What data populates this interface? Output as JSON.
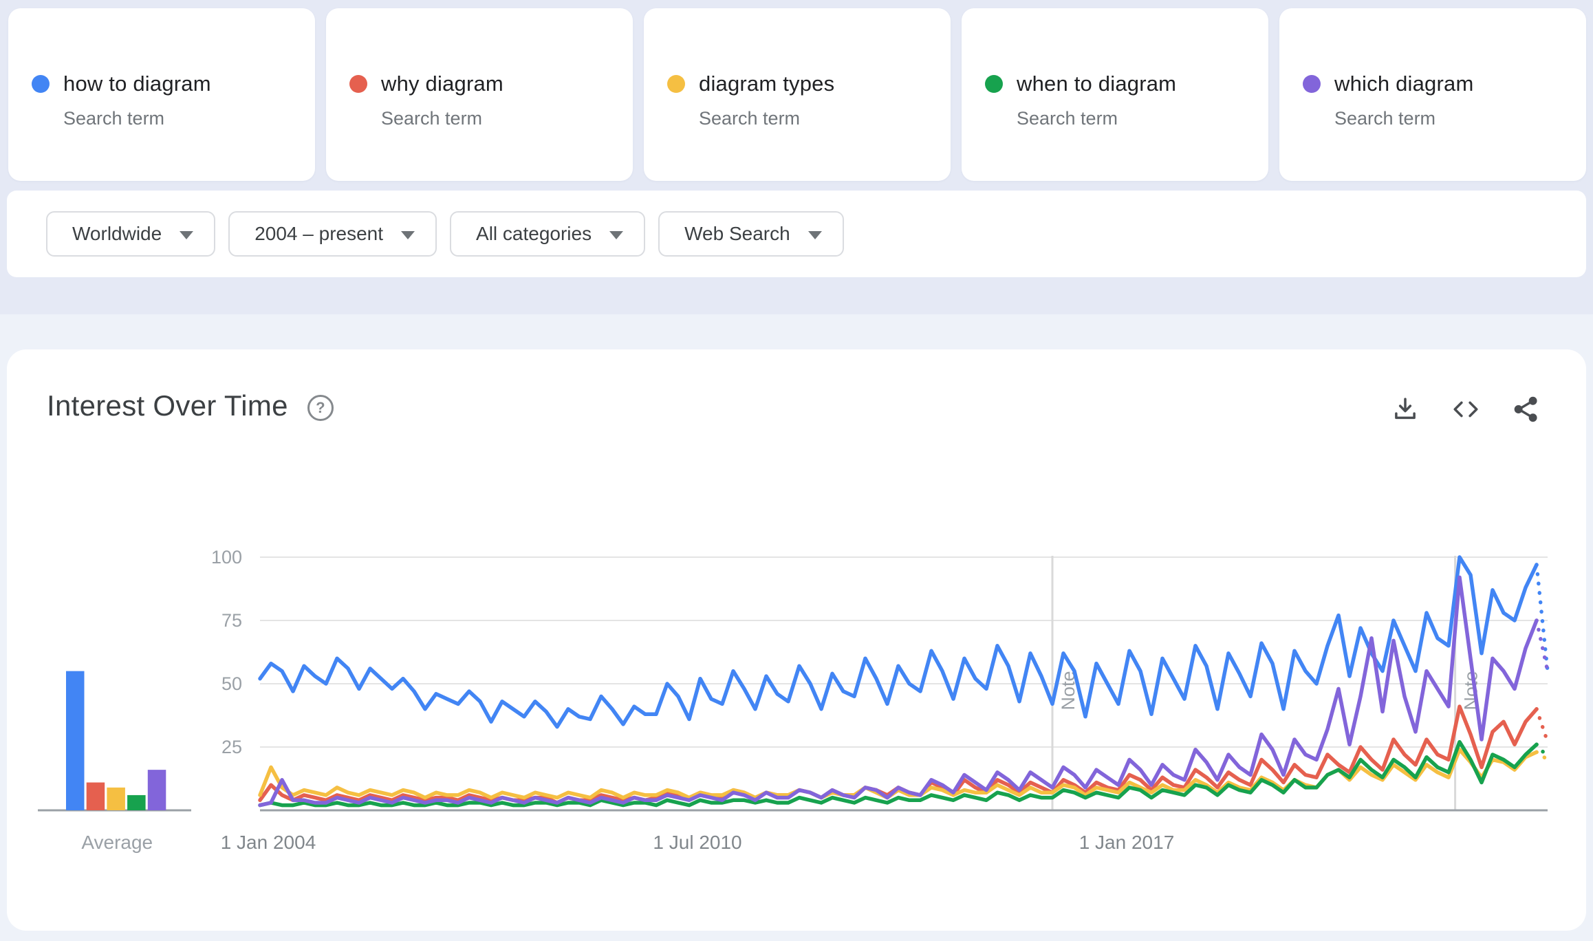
{
  "terms": [
    {
      "label": "how to diagram",
      "type_label": "Search term",
      "color": "#4285f4"
    },
    {
      "label": "why diagram",
      "type_label": "Search term",
      "color": "#e5604f"
    },
    {
      "label": "diagram types",
      "type_label": "Search term",
      "color": "#f5bf42"
    },
    {
      "label": "when to diagram",
      "type_label": "Search term",
      "color": "#17a24e"
    },
    {
      "label": "which diagram",
      "type_label": "Search term",
      "color": "#8265da"
    }
  ],
  "filters": [
    {
      "label": "Worldwide"
    },
    {
      "label": "2004 – present"
    },
    {
      "label": "All categories"
    },
    {
      "label": "Web Search"
    }
  ],
  "panel": {
    "title": "Interest Over Time",
    "help_glyph": "?"
  },
  "chart_data": {
    "type": "line",
    "title": "Interest Over Time",
    "x_domain": [
      2004,
      2023.5
    ],
    "points_per_year": 6,
    "ylim": [
      0,
      100
    ],
    "y_ticks": [
      25,
      50,
      75,
      100
    ],
    "x_ticks": [
      {
        "year": 2004.0,
        "label": "1 Jan 2004"
      },
      {
        "year": 2010.5,
        "label": "1 Jul 2010"
      },
      {
        "year": 2017.0,
        "label": "1 Jan 2017"
      }
    ],
    "notes": [
      {
        "year": 2016.0,
        "label": "Note"
      },
      {
        "year": 2022.1,
        "label": "Note"
      }
    ],
    "partial_last_segment": true,
    "grid": true,
    "average": {
      "label": "Average",
      "values": [
        55,
        11,
        9,
        6,
        16
      ]
    },
    "series": [
      {
        "name": "how to diagram",
        "color": "#4285f4",
        "values": [
          52,
          58,
          55,
          47,
          57,
          53,
          50,
          60,
          56,
          48,
          56,
          52,
          48,
          52,
          47,
          40,
          46,
          44,
          42,
          47,
          43,
          35,
          43,
          40,
          37,
          43,
          39,
          33,
          40,
          37,
          36,
          45,
          40,
          34,
          41,
          38,
          38,
          50,
          45,
          36,
          52,
          44,
          42,
          55,
          48,
          40,
          53,
          46,
          43,
          57,
          50,
          40,
          54,
          47,
          45,
          60,
          52,
          42,
          57,
          50,
          47,
          63,
          55,
          44,
          60,
          52,
          48,
          65,
          57,
          43,
          62,
          53,
          42,
          62,
          55,
          37,
          58,
          50,
          42,
          63,
          55,
          38,
          60,
          52,
          44,
          65,
          57,
          40,
          62,
          54,
          45,
          66,
          58,
          40,
          63,
          55,
          50,
          65,
          77,
          53,
          72,
          62,
          55,
          75,
          65,
          55,
          78,
          68,
          65,
          100,
          93,
          62,
          87,
          78,
          75,
          88,
          97,
          55
        ]
      },
      {
        "name": "why diagram",
        "color": "#e5604f",
        "values": [
          4,
          10,
          6,
          4,
          6,
          5,
          4,
          6,
          5,
          4,
          6,
          5,
          4,
          6,
          5,
          4,
          5,
          5,
          4,
          6,
          5,
          4,
          5,
          4,
          4,
          5,
          5,
          3,
          5,
          4,
          4,
          6,
          5,
          4,
          5,
          4,
          5,
          7,
          6,
          5,
          7,
          6,
          5,
          8,
          7,
          5,
          7,
          6,
          6,
          8,
          7,
          5,
          8,
          6,
          6,
          9,
          8,
          6,
          9,
          7,
          6,
          11,
          9,
          6,
          12,
          9,
          7,
          12,
          10,
          7,
          11,
          9,
          7,
          12,
          10,
          7,
          11,
          9,
          8,
          14,
          12,
          8,
          13,
          10,
          9,
          16,
          13,
          9,
          15,
          12,
          10,
          20,
          16,
          11,
          18,
          14,
          13,
          22,
          18,
          15,
          25,
          20,
          16,
          28,
          22,
          18,
          28,
          22,
          20,
          41,
          30,
          17,
          31,
          35,
          26,
          35,
          40,
          27
        ]
      },
      {
        "name": "diagram types",
        "color": "#f5bf42",
        "values": [
          6,
          17,
          9,
          6,
          8,
          7,
          6,
          9,
          7,
          6,
          8,
          7,
          6,
          8,
          7,
          5,
          7,
          6,
          6,
          8,
          7,
          5,
          7,
          6,
          5,
          7,
          6,
          5,
          7,
          6,
          5,
          8,
          7,
          5,
          7,
          6,
          6,
          8,
          7,
          5,
          7,
          6,
          6,
          8,
          7,
          5,
          7,
          6,
          6,
          8,
          7,
          5,
          7,
          6,
          6,
          9,
          7,
          5,
          8,
          6,
          6,
          9,
          8,
          6,
          8,
          7,
          7,
          10,
          8,
          6,
          9,
          7,
          7,
          10,
          9,
          6,
          9,
          8,
          7,
          11,
          9,
          7,
          10,
          8,
          8,
          12,
          10,
          7,
          11,
          9,
          8,
          13,
          11,
          8,
          12,
          10,
          9,
          14,
          16,
          12,
          17,
          14,
          12,
          18,
          15,
          12,
          18,
          15,
          13,
          24,
          19,
          13,
          20,
          19,
          16,
          21,
          23,
          20
        ]
      },
      {
        "name": "when to diagram",
        "color": "#17a24e",
        "values": [
          2,
          3,
          2,
          2,
          3,
          2,
          2,
          3,
          2,
          2,
          3,
          2,
          2,
          3,
          2,
          2,
          3,
          2,
          2,
          3,
          3,
          2,
          3,
          2,
          2,
          3,
          3,
          2,
          3,
          3,
          2,
          4,
          3,
          2,
          3,
          3,
          2,
          4,
          3,
          2,
          4,
          3,
          3,
          4,
          4,
          3,
          4,
          3,
          3,
          5,
          4,
          3,
          5,
          4,
          3,
          5,
          4,
          3,
          5,
          4,
          4,
          6,
          5,
          4,
          6,
          5,
          4,
          7,
          6,
          4,
          6,
          5,
          5,
          8,
          7,
          5,
          7,
          6,
          5,
          9,
          8,
          5,
          8,
          7,
          6,
          10,
          9,
          6,
          10,
          8,
          7,
          12,
          10,
          7,
          12,
          9,
          9,
          14,
          16,
          13,
          20,
          16,
          13,
          20,
          17,
          13,
          21,
          17,
          15,
          27,
          20,
          11,
          22,
          20,
          17,
          22,
          26,
          21
        ]
      },
      {
        "name": "which diagram",
        "color": "#8265da",
        "values": [
          2,
          3,
          12,
          4,
          4,
          3,
          3,
          5,
          4,
          3,
          5,
          4,
          3,
          5,
          4,
          3,
          4,
          4,
          3,
          5,
          4,
          3,
          5,
          4,
          3,
          5,
          4,
          3,
          5,
          4,
          3,
          5,
          4,
          3,
          5,
          4,
          4,
          6,
          5,
          4,
          6,
          5,
          4,
          7,
          6,
          4,
          7,
          5,
          5,
          8,
          7,
          5,
          8,
          6,
          5,
          9,
          8,
          5,
          9,
          7,
          6,
          12,
          10,
          7,
          14,
          11,
          8,
          15,
          12,
          8,
          15,
          12,
          9,
          17,
          14,
          9,
          16,
          13,
          10,
          20,
          16,
          10,
          18,
          14,
          12,
          24,
          19,
          12,
          22,
          17,
          14,
          30,
          24,
          14,
          28,
          22,
          20,
          32,
          48,
          26,
          45,
          68,
          39,
          67,
          45,
          31,
          55,
          48,
          41,
          92,
          60,
          28,
          60,
          55,
          48,
          64,
          75,
          55
        ]
      }
    ]
  }
}
